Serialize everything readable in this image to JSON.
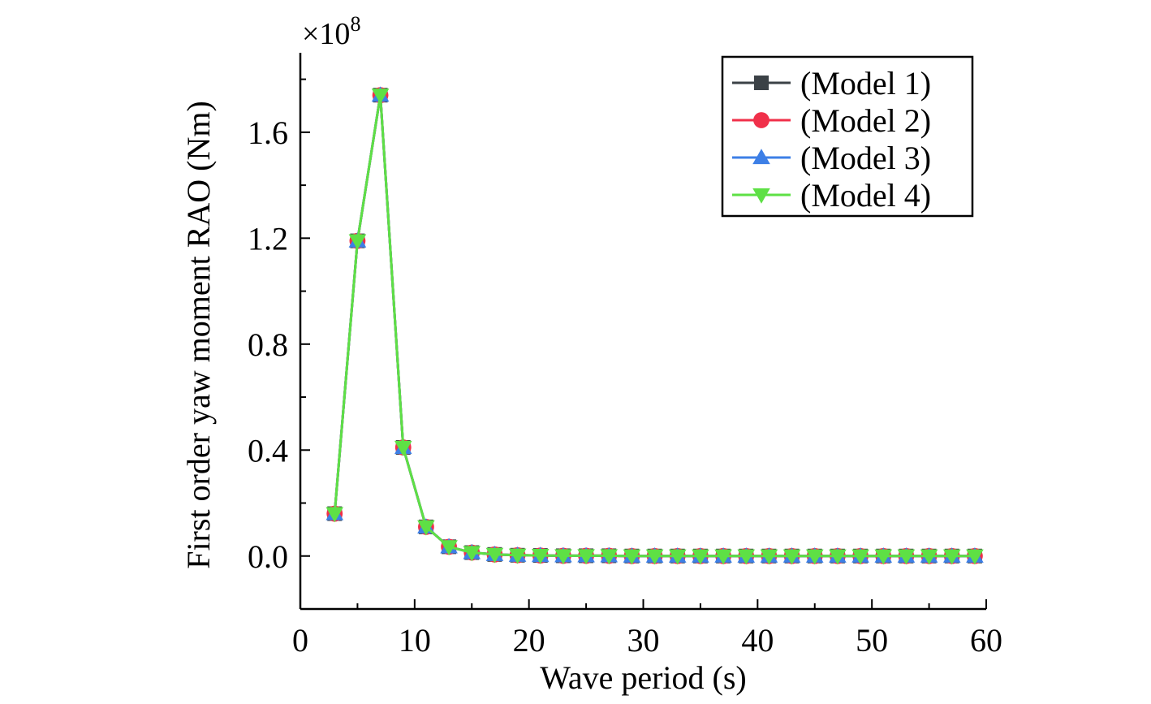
{
  "chart_data": {
    "type": "line",
    "title": "",
    "xlabel": "Wave period (s)",
    "ylabel": "First order yaw moment RAO (Nm)",
    "y_multiplier_label": "×10",
    "y_multiplier_exponent": "8",
    "xlim": [
      0,
      60
    ],
    "ylim": [
      -0.2,
      1.9
    ],
    "x_ticks": [
      0,
      10,
      20,
      30,
      40,
      50,
      60
    ],
    "x_tick_labels": [
      "0",
      "10",
      "20",
      "30",
      "40",
      "50",
      "60"
    ],
    "y_ticks": [
      0.0,
      0.4,
      0.8,
      1.2,
      1.6
    ],
    "y_tick_labels": [
      "0.0",
      "0.4",
      "0.8",
      "1.2",
      "1.6"
    ],
    "grid": false,
    "legend_position": "top-right",
    "x": [
      3,
      5,
      7,
      9,
      11,
      13,
      15,
      17,
      19,
      21,
      23,
      25,
      27,
      29,
      31,
      33,
      35,
      37,
      39,
      41,
      43,
      45,
      47,
      49,
      51,
      53,
      55,
      57,
      59
    ],
    "series": [
      {
        "name": "(Model 1)",
        "color": "#3b4146",
        "marker": "square",
        "values": [
          0.16,
          1.19,
          1.74,
          0.41,
          0.11,
          0.035,
          0.013,
          0.006,
          0.003,
          0.002,
          0.001,
          0.001,
          0.001,
          0.0,
          0.0,
          0.0,
          0.0,
          0.0,
          0.0,
          0.0,
          0.0,
          0.0,
          0.0,
          0.0,
          0.0,
          0.0,
          0.0,
          0.0,
          0.0
        ]
      },
      {
        "name": "(Model 2)",
        "color": "#f0304a",
        "marker": "circle",
        "values": [
          0.16,
          1.19,
          1.74,
          0.41,
          0.11,
          0.035,
          0.013,
          0.006,
          0.003,
          0.002,
          0.001,
          0.001,
          0.001,
          0.0,
          0.0,
          0.0,
          0.0,
          0.0,
          0.0,
          0.0,
          0.0,
          0.0,
          0.0,
          0.0,
          0.0,
          0.0,
          0.0,
          0.0,
          0.0
        ]
      },
      {
        "name": "(Model 3)",
        "color": "#3d7fe6",
        "marker": "triangle-up",
        "values": [
          0.16,
          1.19,
          1.74,
          0.41,
          0.11,
          0.035,
          0.013,
          0.006,
          0.003,
          0.002,
          0.001,
          0.001,
          0.001,
          0.0,
          0.0,
          0.0,
          0.0,
          0.0,
          0.0,
          0.0,
          0.0,
          0.0,
          0.0,
          0.0,
          0.0,
          0.0,
          0.0,
          0.0,
          0.0
        ]
      },
      {
        "name": "(Model 4)",
        "color": "#5ee045",
        "marker": "triangle-down",
        "values": [
          0.16,
          1.19,
          1.74,
          0.41,
          0.11,
          0.035,
          0.013,
          0.006,
          0.003,
          0.002,
          0.001,
          0.001,
          0.001,
          0.0,
          0.0,
          0.0,
          0.0,
          0.0,
          0.0,
          0.0,
          0.0,
          0.0,
          0.0,
          0.0,
          0.0,
          0.0,
          0.0,
          0.0,
          0.0
        ]
      }
    ]
  }
}
